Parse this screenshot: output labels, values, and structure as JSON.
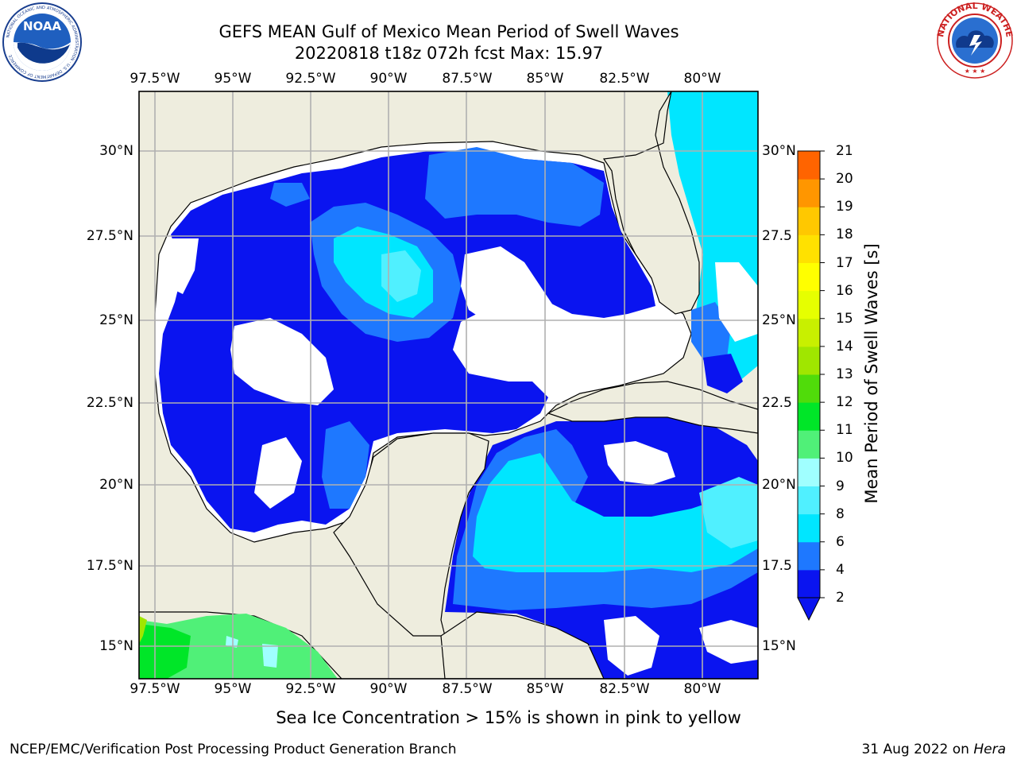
{
  "title": {
    "line1": "GEFS MEAN Gulf of Mexico Mean Period of Swell Waves",
    "line2": "20220818 t18z 072h fcst   Max: 15.97"
  },
  "logos": {
    "left": "NOAA",
    "left_ring": "NATIONAL OCEANIC AND ATMOSPHERIC ADMINISTRATION · U.S. DEPARTMENT OF COMMERCE",
    "right_ring": "NATIONAL WEATHER SERVICE"
  },
  "map": {
    "lon_labels_top": [
      "97.5°W",
      "95°W",
      "92.5°W",
      "90°W",
      "87.5°W",
      "85°W",
      "82.5°W",
      "80°W"
    ],
    "lon_labels_bottom": [
      "97.5°W",
      "95°W",
      "92.5°W",
      "90°W",
      "87.5°W",
      "85°W",
      "82.5°W",
      "80°W"
    ],
    "lat_labels_left": [
      "30°N",
      "27.5°N",
      "25°N",
      "22.5°N",
      "20°N",
      "17.5°N",
      "15°N"
    ],
    "lat_labels_right": [
      "30°N",
      "27.5",
      "25°N",
      "22.5",
      "20°N",
      "17.5",
      "15°N"
    ],
    "colors": {
      "land": "#eeedde",
      "ocean_gap": "#ffffff",
      "grid": "#b0b0b0"
    }
  },
  "colorbar": {
    "label": "Mean Period of Swell Waves [s]",
    "ticks": [
      "2",
      "4",
      "6",
      "8",
      "9",
      "10",
      "11",
      "12",
      "13",
      "14",
      "15",
      "16",
      "17",
      "18",
      "19",
      "20",
      "21"
    ],
    "colors": [
      "#0a14f0",
      "#1e78ff",
      "#00e6ff",
      "#50f0ff",
      "#a0ffff",
      "#50f078",
      "#00e628",
      "#50dc0a",
      "#a0e600",
      "#c8f000",
      "#e6ff00",
      "#ffff00",
      "#ffe100",
      "#ffc800",
      "#ff9600",
      "#ff6400",
      "#ff3200",
      "#ff0000"
    ]
  },
  "footnote": "Sea Ice Concentration > 15% is shown in pink to yellow",
  "credit_left": "NCEP/EMC/Verification Post Processing Product Generation Branch",
  "credit_right_prefix": "31 Aug 2022 on ",
  "credit_right_host": "Hera"
}
